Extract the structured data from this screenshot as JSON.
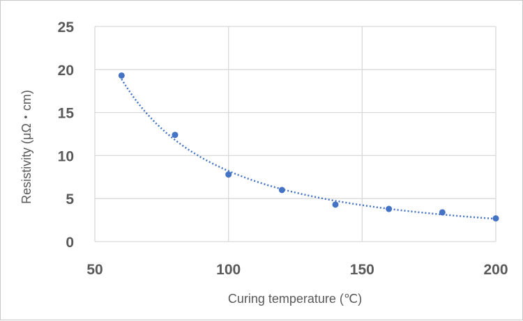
{
  "chart_data": {
    "type": "scatter",
    "title": "",
    "xlabel": "Curing temperature (℃)",
    "ylabel": "Resistivity (μΩ・cm)",
    "xlim": [
      50,
      200
    ],
    "ylim": [
      0,
      25
    ],
    "xticks": [
      50,
      100,
      150,
      200
    ],
    "yticks": [
      0,
      5,
      10,
      15,
      20,
      25
    ],
    "grid": true,
    "legend": "none",
    "trendline": "power, dotted",
    "color": "#4472C4",
    "series": [
      {
        "x": [
          60,
          80,
          100,
          120,
          140,
          160,
          180,
          200
        ],
        "y": [
          19.3,
          12.4,
          7.8,
          6.0,
          4.3,
          3.8,
          3.4,
          2.7
        ]
      }
    ]
  }
}
